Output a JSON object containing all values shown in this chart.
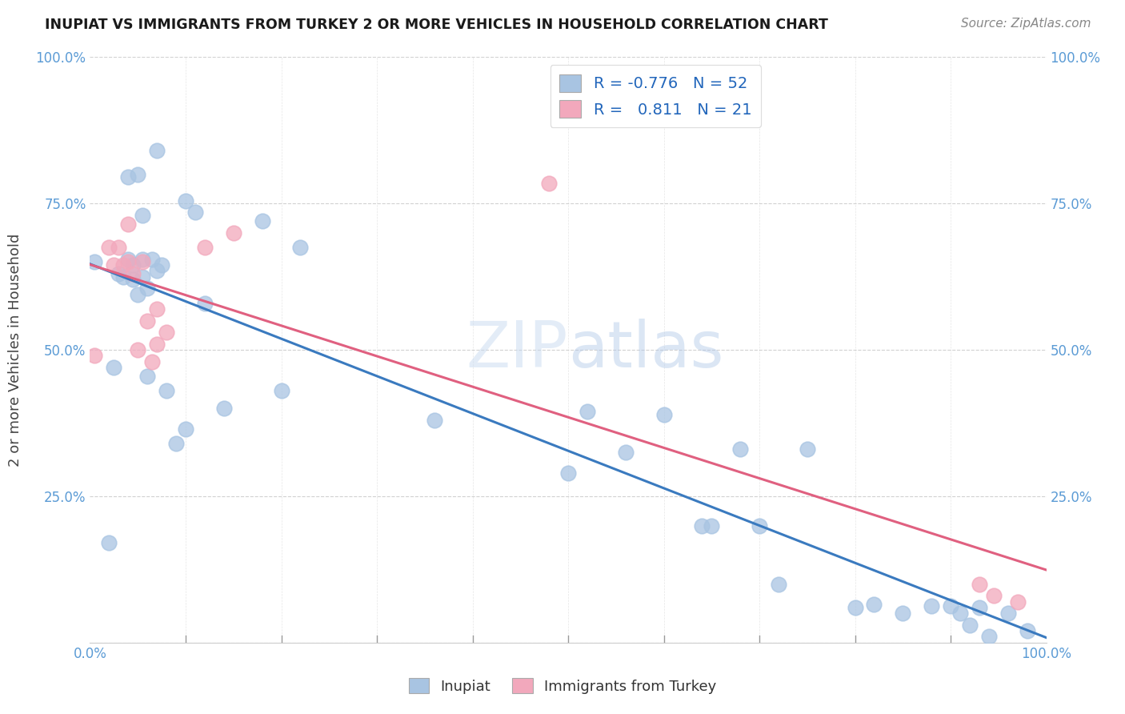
{
  "title": "INUPIAT VS IMMIGRANTS FROM TURKEY 2 OR MORE VEHICLES IN HOUSEHOLD CORRELATION CHART",
  "source": "Source: ZipAtlas.com",
  "ylabel": "2 or more Vehicles in Household",
  "xlim": [
    0,
    1
  ],
  "ylim": [
    0,
    1
  ],
  "inupiat_color": "#a8c4e2",
  "turkey_color": "#f2a8bc",
  "line_blue": "#3a7abf",
  "line_pink": "#e06080",
  "watermark_zip": "ZIP",
  "watermark_atlas": "atlas",
  "background_color": "#ffffff",
  "inupiat_x": [
    0.005,
    0.02,
    0.025,
    0.03,
    0.035,
    0.04,
    0.04,
    0.045,
    0.045,
    0.05,
    0.05,
    0.055,
    0.055,
    0.055,
    0.06,
    0.06,
    0.065,
    0.07,
    0.07,
    0.075,
    0.08,
    0.09,
    0.1,
    0.1,
    0.11,
    0.12,
    0.14,
    0.18,
    0.2,
    0.22,
    0.36,
    0.5,
    0.52,
    0.56,
    0.6,
    0.64,
    0.65,
    0.68,
    0.7,
    0.72,
    0.75,
    0.8,
    0.82,
    0.85,
    0.88,
    0.9,
    0.91,
    0.92,
    0.93,
    0.94,
    0.96,
    0.98
  ],
  "inupiat_y": [
    0.65,
    0.17,
    0.47,
    0.63,
    0.625,
    0.795,
    0.655,
    0.645,
    0.62,
    0.595,
    0.8,
    0.73,
    0.655,
    0.625,
    0.605,
    0.455,
    0.655,
    0.635,
    0.84,
    0.645,
    0.43,
    0.34,
    0.755,
    0.365,
    0.735,
    0.58,
    0.4,
    0.72,
    0.43,
    0.675,
    0.38,
    0.29,
    0.395,
    0.325,
    0.39,
    0.2,
    0.2,
    0.33,
    0.2,
    0.1,
    0.33,
    0.06,
    0.065,
    0.05,
    0.063,
    0.063,
    0.05,
    0.03,
    0.06,
    0.01,
    0.05,
    0.02
  ],
  "turkey_x": [
    0.005,
    0.02,
    0.025,
    0.03,
    0.035,
    0.04,
    0.04,
    0.045,
    0.05,
    0.055,
    0.06,
    0.065,
    0.07,
    0.07,
    0.08,
    0.12,
    0.15,
    0.48,
    0.93,
    0.945,
    0.97
  ],
  "turkey_y": [
    0.49,
    0.675,
    0.645,
    0.675,
    0.645,
    0.715,
    0.65,
    0.63,
    0.5,
    0.65,
    0.55,
    0.48,
    0.57,
    0.51,
    0.53,
    0.675,
    0.7,
    0.785,
    0.1,
    0.08,
    0.07
  ]
}
